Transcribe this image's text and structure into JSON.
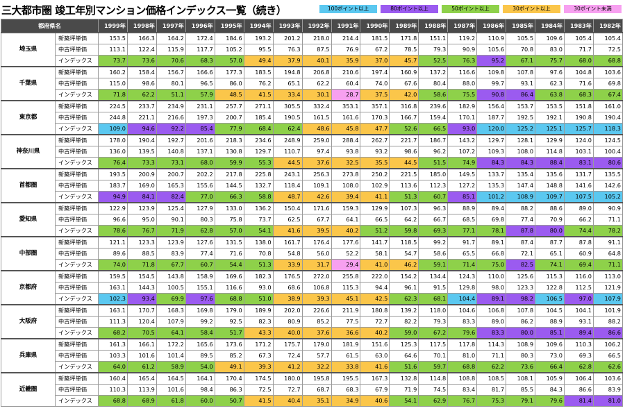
{
  "title": "三大都市圏 竣工年別マンション価格インデックス一覧（続き）",
  "legend": [
    {
      "label": "100ポイント以上",
      "color": "#5bc8f0"
    },
    {
      "label": "80ポイント以上",
      "color": "#9b5bf0"
    },
    {
      "label": "50ポイント以上",
      "color": "#8ed14a"
    },
    {
      "label": "30ポイント以上",
      "color": "#fbc64a"
    },
    {
      "label": "30ポイント未満",
      "color": "#f7a0f0"
    }
  ],
  "colors": {
    "c100": "#5bc8f0",
    "c80": "#9b5bf0",
    "c50": "#8ed14a",
    "c30": "#fbc64a",
    "c0": "#f7a0f0"
  },
  "header": {
    "pref": "都府県名",
    "years": [
      "1999年",
      "1998年",
      "1997年",
      "1996年",
      "1995年",
      "1994年",
      "1993年",
      "1992年",
      "1991年",
      "1990年",
      "1989年",
      "1988年",
      "1987年",
      "1986年",
      "1985年",
      "1984年",
      "1983年",
      "1982年"
    ]
  },
  "row_labels": {
    "new": "新築坪単価",
    "used": "中古坪単価",
    "index": "インデックス"
  },
  "groups": [
    {
      "name": "埼玉県",
      "new": [
        "153.5",
        "166.3",
        "164.2",
        "172.4",
        "184.6",
        "193.2",
        "201.2",
        "218.0",
        "214.4",
        "181.5",
        "171.8",
        "151.1",
        "119.2",
        "110.9",
        "105.5",
        "109.6",
        "105.4",
        "105.4"
      ],
      "used": [
        "113.1",
        "122.4",
        "115.9",
        "117.7",
        "105.2",
        "95.5",
        "76.3",
        "87.5",
        "76.9",
        "67.2",
        "78.5",
        "79.3",
        "90.9",
        "105.6",
        "70.8",
        "83.0",
        "71.7",
        "72.5"
      ],
      "index": [
        "73.7",
        "73.6",
        "70.6",
        "68.3",
        "57.0",
        "49.4",
        "37.9",
        "40.1",
        "35.9",
        "37.0",
        "45.7",
        "52.5",
        "76.3",
        "95.2",
        "67.1",
        "75.7",
        "68.0",
        "68.8"
      ]
    },
    {
      "name": "千葉県",
      "new": [
        "160.2",
        "158.4",
        "156.7",
        "166.6",
        "177.3",
        "183.5",
        "194.8",
        "206.8",
        "210.6",
        "197.4",
        "160.9",
        "137.2",
        "116.6",
        "109.8",
        "107.8",
        "97.6",
        "104.8",
        "103.6"
      ],
      "used": [
        "115.0",
        "98.6",
        "80.1",
        "96.5",
        "86.0",
        "76.2",
        "65.1",
        "62.2",
        "60.4",
        "74.0",
        "67.6",
        "80.4",
        "88.0",
        "99.7",
        "93.1",
        "62.3",
        "71.6",
        "69.8"
      ],
      "index": [
        "71.8",
        "62.2",
        "51.1",
        "57.9",
        "48.5",
        "41.5",
        "33.4",
        "30.1",
        "28.7",
        "37.5",
        "42.0",
        "58.6",
        "75.5",
        "90.8",
        "86.4",
        "63.8",
        "68.3",
        "67.4"
      ]
    },
    {
      "name": "東京都",
      "new": [
        "224.5",
        "233.7",
        "234.9",
        "231.1",
        "257.7",
        "271.1",
        "305.5",
        "332.4",
        "353.1",
        "357.1",
        "316.8",
        "239.6",
        "182.9",
        "156.4",
        "153.7",
        "153.5",
        "151.8",
        "161.0"
      ],
      "used": [
        "244.8",
        "221.1",
        "216.6",
        "197.3",
        "200.7",
        "185.4",
        "190.5",
        "161.5",
        "161.6",
        "170.3",
        "166.7",
        "159.4",
        "170.1",
        "187.7",
        "192.5",
        "192.1",
        "190.8",
        "190.4"
      ],
      "index": [
        "109.0",
        "94.6",
        "92.2",
        "85.4",
        "77.9",
        "68.4",
        "62.4",
        "48.6",
        "45.8",
        "47.7",
        "52.6",
        "66.5",
        "93.0",
        "120.0",
        "125.2",
        "125.1",
        "125.7",
        "118.3"
      ]
    },
    {
      "name": "神奈川県",
      "new": [
        "178.0",
        "190.4",
        "192.7",
        "201.6",
        "218.3",
        "234.6",
        "248.9",
        "259.0",
        "288.4",
        "262.7",
        "221.7",
        "186.7",
        "143.2",
        "129.7",
        "128.1",
        "129.9",
        "124.0",
        "124.5"
      ],
      "used": [
        "136.0",
        "139.5",
        "140.8",
        "137.1",
        "130.8",
        "129.7",
        "110.7",
        "97.4",
        "93.8",
        "93.2",
        "98.6",
        "96.2",
        "107.2",
        "109.3",
        "108.0",
        "114.8",
        "103.1",
        "100.4"
      ],
      "index": [
        "76.4",
        "73.3",
        "73.1",
        "68.0",
        "59.9",
        "55.3",
        "44.5",
        "37.6",
        "32.5",
        "35.5",
        "44.5",
        "51.5",
        "74.9",
        "84.3",
        "84.3",
        "88.4",
        "83.1",
        "80.6"
      ]
    },
    {
      "name": "首都圏",
      "new": [
        "193.5",
        "200.9",
        "200.7",
        "202.2",
        "217.8",
        "225.8",
        "243.1",
        "256.3",
        "273.8",
        "250.2",
        "221.5",
        "185.0",
        "149.5",
        "133.7",
        "135.4",
        "135.6",
        "131.7",
        "135.5"
      ],
      "used": [
        "183.7",
        "169.0",
        "165.3",
        "155.6",
        "144.5",
        "132.7",
        "118.4",
        "109.1",
        "108.0",
        "102.9",
        "113.6",
        "112.3",
        "127.2",
        "135.3",
        "147.4",
        "148.8",
        "141.6",
        "142.6"
      ],
      "index": [
        "94.9",
        "84.1",
        "82.4",
        "77.0",
        "66.3",
        "58.8",
        "48.7",
        "42.6",
        "39.4",
        "41.1",
        "51.3",
        "60.7",
        "85.1",
        "101.2",
        "108.9",
        "109.7",
        "107.5",
        "105.2"
      ]
    },
    {
      "name": "愛知県",
      "new": [
        "122.9",
        "123.9",
        "125.4",
        "127.9",
        "133.0",
        "136.2",
        "150.4",
        "171.6",
        "159.3",
        "129.9",
        "107.3",
        "96.3",
        "88.9",
        "89.4",
        "88.2",
        "88.6",
        "89.0",
        "90.9"
      ],
      "used": [
        "96.6",
        "95.0",
        "90.1",
        "80.3",
        "75.8",
        "73.7",
        "62.5",
        "67.7",
        "64.1",
        "66.5",
        "64.2",
        "66.7",
        "68.5",
        "69.8",
        "77.4",
        "70.9",
        "66.2",
        "71.1"
      ],
      "index": [
        "78.6",
        "76.7",
        "71.9",
        "62.8",
        "57.0",
        "54.1",
        "41.6",
        "39.5",
        "40.2",
        "51.2",
        "59.8",
        "69.3",
        "77.1",
        "78.1",
        "87.8",
        "80.0",
        "74.4",
        "78.2"
      ]
    },
    {
      "name": "中部圏",
      "new": [
        "121.1",
        "123.3",
        "123.9",
        "127.6",
        "131.5",
        "138.0",
        "161.7",
        "176.4",
        "177.6",
        "141.7",
        "118.5",
        "99.2",
        "91.7",
        "89.1",
        "87.4",
        "87.7",
        "87.8",
        "91.1"
      ],
      "used": [
        "89.6",
        "88.5",
        "83.9",
        "77.4",
        "71.6",
        "70.8",
        "54.8",
        "56.0",
        "52.2",
        "58.1",
        "54.7",
        "58.6",
        "65.5",
        "66.8",
        "72.1",
        "65.1",
        "60.9",
        "64.8"
      ],
      "index": [
        "74.0",
        "71.8",
        "67.7",
        "60.7",
        "54.4",
        "51.3",
        "33.9",
        "31.7",
        "29.4",
        "41.0",
        "46.2",
        "59.1",
        "71.4",
        "75.0",
        "82.5",
        "74.1",
        "69.4",
        "71.1"
      ]
    },
    {
      "name": "京都府",
      "new": [
        "159.5",
        "154.5",
        "143.8",
        "158.9",
        "169.6",
        "182.3",
        "176.5",
        "272.0",
        "255.8",
        "222.0",
        "154.2",
        "134.4",
        "124.3",
        "110.0",
        "125.6",
        "115.3",
        "116.0",
        "113.0"
      ],
      "used": [
        "163.1",
        "144.3",
        "100.5",
        "155.1",
        "116.6",
        "93.0",
        "68.6",
        "106.8",
        "115.3",
        "94.4",
        "96.1",
        "91.5",
        "129.8",
        "98.0",
        "123.3",
        "122.8",
        "112.5",
        "121.9"
      ],
      "index": [
        "102.3",
        "93.4",
        "69.9",
        "97.6",
        "68.8",
        "51.0",
        "38.9",
        "39.3",
        "45.1",
        "42.5",
        "62.3",
        "68.1",
        "104.4",
        "89.1",
        "98.2",
        "106.5",
        "97.0",
        "107.9"
      ]
    },
    {
      "name": "大阪府",
      "new": [
        "163.1",
        "170.7",
        "168.3",
        "169.8",
        "179.0",
        "189.9",
        "202.0",
        "226.6",
        "211.9",
        "180.8",
        "139.2",
        "118.0",
        "104.6",
        "106.8",
        "107.8",
        "104.5",
        "104.1",
        "101.9"
      ],
      "used": [
        "111.3",
        "120.4",
        "107.9",
        "99.2",
        "92.5",
        "82.3",
        "80.9",
        "85.2",
        "77.5",
        "72.7",
        "82.2",
        "79.3",
        "83.3",
        "89.0",
        "86.2",
        "88.9",
        "93.1",
        "88.2"
      ],
      "index": [
        "68.2",
        "70.5",
        "64.1",
        "58.4",
        "51.7",
        "43.3",
        "40.0",
        "37.6",
        "36.6",
        "40.2",
        "59.0",
        "67.2",
        "79.6",
        "83.3",
        "80.0",
        "85.1",
        "89.4",
        "86.6"
      ]
    },
    {
      "name": "兵庫県",
      "new": [
        "161.3",
        "166.1",
        "172.2",
        "165.6",
        "173.6",
        "171.2",
        "175.7",
        "179.0",
        "181.9",
        "151.6",
        "125.3",
        "117.5",
        "117.8",
        "114.3",
        "108.9",
        "109.6",
        "110.3",
        "106.2"
      ],
      "used": [
        "103.3",
        "101.6",
        "101.4",
        "89.5",
        "85.2",
        "67.3",
        "72.4",
        "57.7",
        "61.5",
        "63.0",
        "64.6",
        "70.1",
        "81.0",
        "71.1",
        "80.3",
        "73.0",
        "69.3",
        "66.5"
      ],
      "index": [
        "64.0",
        "61.2",
        "58.9",
        "54.0",
        "49.1",
        "39.3",
        "41.2",
        "32.2",
        "33.8",
        "41.6",
        "51.6",
        "59.7",
        "68.8",
        "62.2",
        "73.6",
        "66.4",
        "62.8",
        "62.6"
      ]
    },
    {
      "name": "近畿圏",
      "new": [
        "160.4",
        "165.4",
        "164.5",
        "164.1",
        "170.4",
        "174.5",
        "180.0",
        "195.8",
        "195.5",
        "167.3",
        "132.8",
        "114.8",
        "108.8",
        "108.5",
        "108.1",
        "105.9",
        "106.4",
        "103.6"
      ],
      "used": [
        "110.3",
        "113.9",
        "101.6",
        "98.4",
        "86.3",
        "72.5",
        "72.7",
        "68.7",
        "68.3",
        "67.9",
        "71.9",
        "74.5",
        "83.4",
        "81.7",
        "85.5",
        "84.3",
        "86.6",
        "83.9"
      ],
      "index": [
        "68.8",
        "68.9",
        "61.8",
        "60.0",
        "50.7",
        "41.5",
        "40.4",
        "35.1",
        "34.9",
        "40.6",
        "54.1",
        "62.9",
        "76.7",
        "75.3",
        "79.1",
        "79.6",
        "81.4",
        "81.0"
      ]
    }
  ]
}
